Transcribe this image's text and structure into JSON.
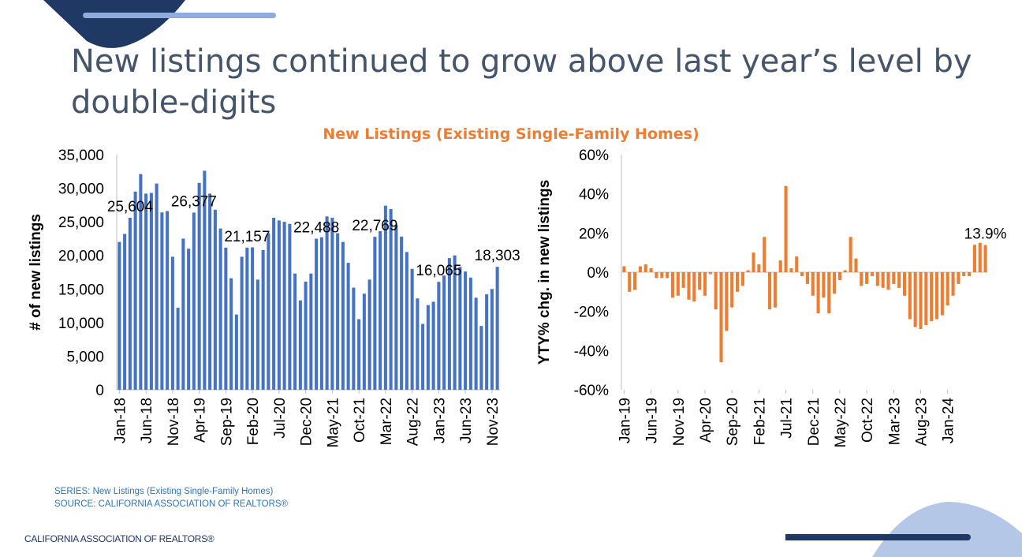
{
  "slide": {
    "title": "New listings continued to grow above last year’s level by double-digits",
    "chart_title": "New Listings (Existing Single-Family Homes)",
    "series_note": "SERIES: New Listings (Existing Single-Family Homes)",
    "source_note": "SOURCE: CALIFORNIA ASSOCIATION OF REALTORS®",
    "org_name": "CALIFORNIA ASSOCIATION OF REALTORS®"
  },
  "colors": {
    "bar_blue": "#4472c4",
    "bar_orange": "#ed7d31",
    "title": "#44546a",
    "navy": "#1f3864",
    "accent_light": "#8faadc"
  },
  "chart_data": [
    {
      "type": "bar",
      "title": "New Listings (Existing Single-Family Homes)",
      "ylabel": "# of new listings",
      "xlabel": "",
      "ylim": [
        0,
        35000
      ],
      "yticks": [
        "35,000",
        "30,000",
        "25,000",
        "20,000",
        "15,000",
        "10,000",
        "5,000",
        "0"
      ],
      "x_tick_labels": [
        "Jan-18",
        "Jun-18",
        "Nov-18",
        "Apr-19",
        "Sep-19",
        "Feb-20",
        "Jul-20",
        "Dec-20",
        "May-21",
        "Oct-21",
        "Mar-22",
        "Aug-22",
        "Jan-23",
        "Jun-23",
        "Nov-23"
      ],
      "x_start": "Jan-18",
      "values": [
        22000,
        23200,
        25604,
        29500,
        32100,
        29200,
        29300,
        30700,
        26400,
        26600,
        19800,
        12200,
        22500,
        21000,
        26377,
        30800,
        32600,
        29200,
        26800,
        24000,
        21157,
        16600,
        11200,
        19800,
        21157,
        21200,
        16400,
        20800,
        23300,
        25600,
        25200,
        25000,
        24700,
        17300,
        13300,
        16100,
        17300,
        22488,
        22700,
        25800,
        25600,
        23300,
        22000,
        18900,
        15200,
        10500,
        14300,
        16400,
        22769,
        23600,
        27400,
        26900,
        24500,
        22800,
        20500,
        18000,
        13600,
        9800,
        12600,
        13100,
        16065,
        17000,
        19600,
        20000,
        18303,
        17600,
        16700,
        13700,
        9500,
        14200,
        15000,
        18303
      ],
      "data_labels": [
        {
          "text": "25,604",
          "index": 2
        },
        {
          "text": "26,377",
          "index": 14
        },
        {
          "text": "21,157",
          "index": 24
        },
        {
          "text": "22,488",
          "index": 37
        },
        {
          "text": "22,769",
          "index": 48
        },
        {
          "text": "16,065",
          "index": 60
        },
        {
          "text": "18,303",
          "index": 71
        }
      ]
    },
    {
      "type": "bar",
      "title": "New Listings (Existing Single-Family Homes)",
      "ylabel": "YTY% chg. in new listings",
      "xlabel": "",
      "ylim": [
        -60,
        60
      ],
      "yticks": [
        "60%",
        "40%",
        "20%",
        "0%",
        "-20%",
        "-40%",
        "-60%"
      ],
      "x_tick_labels": [
        "Jan-19",
        "Jun-19",
        "Nov-19",
        "Apr-20",
        "Sep-20",
        "Feb-21",
        "Jul-21",
        "Dec-21",
        "May-22",
        "Oct-22",
        "Mar-23",
        "Aug-23",
        "Jan-24"
      ],
      "x_start": "Jan-19",
      "values": [
        3,
        -10,
        -9,
        3,
        4,
        2,
        -3,
        -3,
        -3,
        -13,
        -12,
        -8,
        -14,
        -15,
        -9,
        -12,
        -1,
        -19,
        -46,
        -30,
        -18,
        -10,
        -7,
        1,
        10,
        4,
        18,
        -19,
        -18,
        6,
        44,
        2,
        8,
        -2,
        -6,
        -12,
        -21,
        -13,
        -21,
        -11,
        -4,
        1,
        18,
        7,
        -7,
        -6,
        -2,
        -7,
        -8,
        -9,
        -6,
        -8,
        -12,
        -24,
        -28,
        -29,
        -27,
        -25,
        -24,
        -22,
        -17,
        -12,
        -6,
        -2,
        -2,
        14,
        15,
        13.9
      ],
      "data_labels": [
        {
          "text": "13.9%",
          "index": 67
        }
      ]
    }
  ]
}
